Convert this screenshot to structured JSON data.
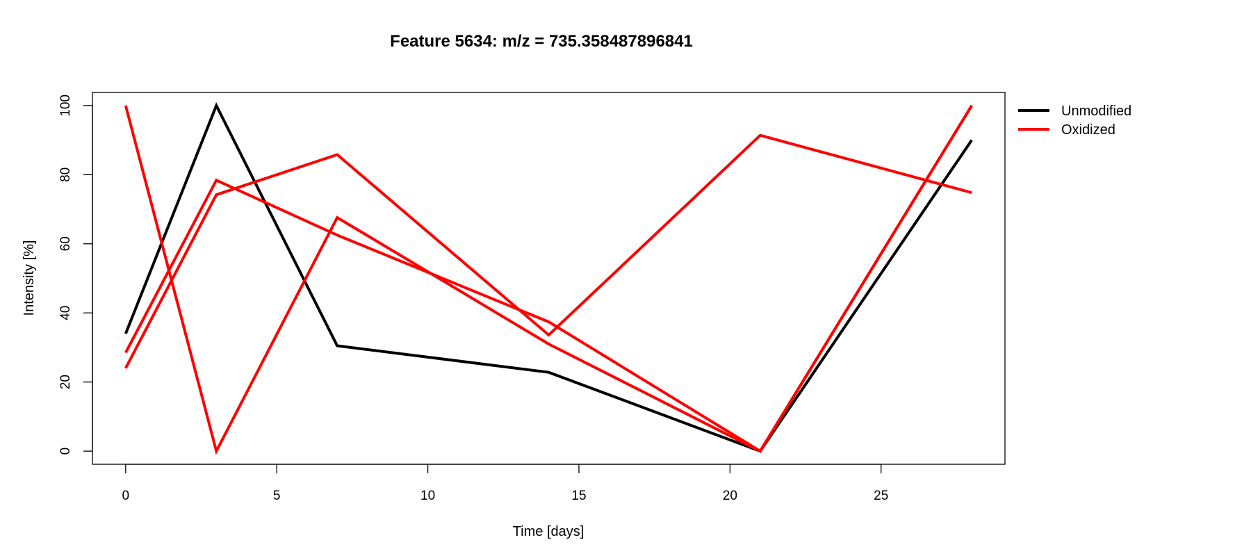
{
  "chart_data": {
    "type": "line",
    "title": "Feature 5634: m/z = 735.358487896841",
    "xlabel": "Time [days]",
    "ylabel": "Intensity [%]",
    "xlim": [
      -1.1,
      29.1
    ],
    "ylim": [
      -3.8,
      103.8
    ],
    "xticks": [
      0,
      5,
      10,
      15,
      20,
      25
    ],
    "yticks": [
      0,
      20,
      40,
      60,
      80,
      100
    ],
    "grid": false,
    "legend": {
      "placement": "outside-right-top",
      "entries": [
        {
          "label": "Unmodified",
          "color": "#000000"
        },
        {
          "label": "Oxidized",
          "color": "#ff0000"
        }
      ]
    },
    "series": [
      {
        "group": "Unmodified",
        "color": "#000000",
        "x": [
          0,
          3,
          7,
          14,
          21,
          28
        ],
        "y": [
          34,
          100,
          30.5,
          22.8,
          0,
          90
        ]
      },
      {
        "group": "Oxidized",
        "color": "#ff0000",
        "x": [
          0,
          3,
          7,
          14,
          21,
          28
        ],
        "y": [
          100,
          0,
          67.6,
          31,
          0,
          100
        ]
      },
      {
        "group": "Oxidized",
        "color": "#ff0000",
        "x": [
          0,
          3,
          7,
          14,
          21,
          28
        ],
        "y": [
          28.5,
          78.4,
          62.5,
          37.4,
          0,
          100
        ]
      },
      {
        "group": "Oxidized",
        "color": "#ff0000",
        "x": [
          0,
          3,
          7,
          14,
          21,
          28
        ],
        "y": [
          24,
          74.2,
          85.8,
          33.6,
          91.4,
          74.8
        ]
      }
    ]
  }
}
